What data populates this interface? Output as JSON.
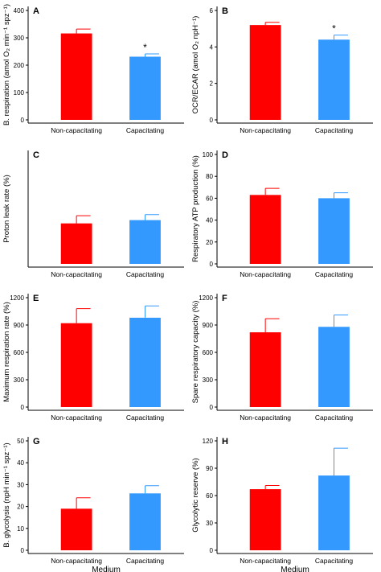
{
  "figure": {
    "categories": [
      "Non-capacitating",
      "Capacitating"
    ],
    "colors": {
      "non_capacitating": "#ff0000",
      "capacitating": "#3399ff"
    },
    "x_title": "Medium"
  },
  "chart_data": [
    {
      "panel": "A",
      "type": "bar",
      "categories": [
        "Non-capacitating",
        "Capacitating"
      ],
      "values": [
        316,
        231
      ],
      "errors": [
        16,
        10
      ],
      "ylabel": "B. respiration (amol O₂ min⁻¹ spz⁻¹)",
      "ylim": [
        0,
        400
      ],
      "yticks": [
        0,
        100,
        200,
        300,
        400
      ],
      "significance": [
        "",
        "*"
      ],
      "xlabel": ""
    },
    {
      "panel": "B",
      "type": "bar",
      "categories": [
        "Non-capacitating",
        "Capacitating"
      ],
      "values": [
        5.2,
        4.4
      ],
      "errors": [
        0.15,
        0.25
      ],
      "ylabel": "OCR/ECAR (amol O₂ npH⁻¹)",
      "ylim": [
        0,
        6
      ],
      "yticks": [
        0,
        2,
        4,
        6
      ],
      "significance": [
        "",
        "*"
      ],
      "xlabel": ""
    },
    {
      "panel": "C",
      "type": "bar",
      "categories": [
        "Non-capacitating",
        "Capacitating"
      ],
      "values": [
        37,
        40
      ],
      "errors": [
        7,
        5
      ],
      "ylabel": "Proton leak rate (%)",
      "ylim": [
        0,
        100
      ],
      "yticks": [],
      "significance": [
        "",
        ""
      ],
      "xlabel": ""
    },
    {
      "panel": "D",
      "type": "bar",
      "categories": [
        "Non-capacitating",
        "Capacitating"
      ],
      "values": [
        63,
        60
      ],
      "errors": [
        6,
        5
      ],
      "ylabel": "Respiratory ATP production (%)",
      "ylim": [
        0,
        100
      ],
      "yticks": [
        0,
        20,
        40,
        60,
        80,
        100
      ],
      "significance": [
        "",
        ""
      ],
      "xlabel": ""
    },
    {
      "panel": "E",
      "type": "bar",
      "categories": [
        "Non-capacitating",
        "Capacitating"
      ],
      "values": [
        920,
        980
      ],
      "errors": [
        160,
        130
      ],
      "ylabel": "Maximum respiration rate (%)",
      "ylim": [
        0,
        1200
      ],
      "yticks": [
        0,
        300,
        600,
        900,
        1200
      ],
      "significance": [
        "",
        ""
      ],
      "xlabel": ""
    },
    {
      "panel": "F",
      "type": "bar",
      "categories": [
        "Non-capacitating",
        "Capacitating"
      ],
      "values": [
        820,
        880
      ],
      "errors": [
        150,
        130
      ],
      "ylabel": "Spare respiratory capacity (%)",
      "ylim": [
        0,
        1200
      ],
      "yticks": [
        0,
        300,
        600,
        900,
        1200
      ],
      "significance": [
        "",
        ""
      ],
      "xlabel": ""
    },
    {
      "panel": "G",
      "type": "bar",
      "categories": [
        "Non-capacitating",
        "Capacitating"
      ],
      "values": [
        19,
        26
      ],
      "errors": [
        5,
        3.5
      ],
      "ylabel": "B. glycolysis (npH min⁻¹ spz⁻¹)",
      "ylim": [
        0,
        50
      ],
      "yticks": [
        0,
        10,
        20,
        30,
        40,
        50
      ],
      "significance": [
        "",
        ""
      ],
      "xlabel": "Medium"
    },
    {
      "panel": "H",
      "type": "bar",
      "categories": [
        "Non-capacitating",
        "Capacitating"
      ],
      "values": [
        67,
        82
      ],
      "errors": [
        4,
        30
      ],
      "ylabel": "Glycolytic reserve (%)",
      "ylim": [
        0,
        120
      ],
      "yticks": [
        0,
        30,
        60,
        90,
        120
      ],
      "significance": [
        "",
        ""
      ],
      "xlabel": "Medium"
    }
  ]
}
